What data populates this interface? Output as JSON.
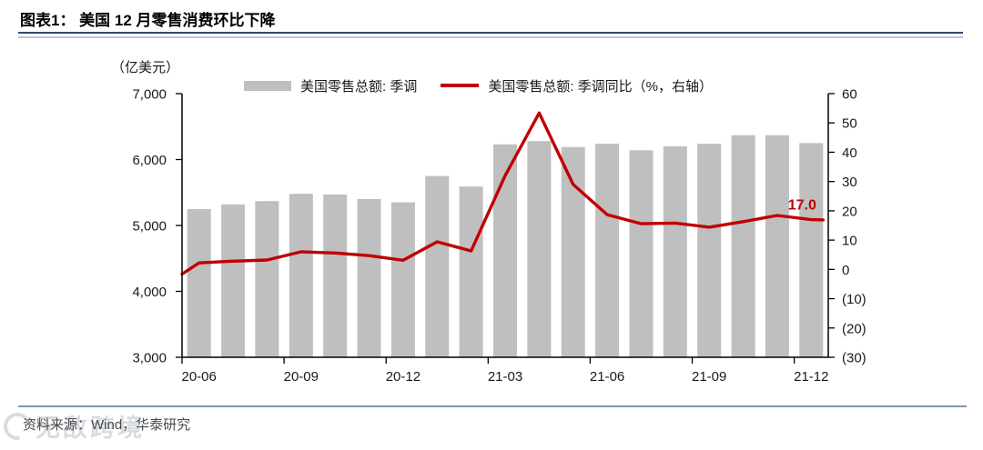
{
  "title": "图表1：  美国 12 月零售消费环比下降",
  "axis_unit_label": "（亿美元）",
  "legend": [
    {
      "label": "美国零售总额: 季调",
      "type": "bar",
      "color": "#BFBFBF"
    },
    {
      "label": "美国零售总额: 季调同比（%，右轴）",
      "type": "line",
      "color": "#C00000"
    }
  ],
  "footer": {
    "source": "资料来源：Wind，华泰研究"
  },
  "watermark": "无敌跨境",
  "chart_data": {
    "type": "bar+line combo",
    "categories": [
      "20-06",
      "20-07",
      "20-08",
      "20-09",
      "20-10",
      "20-11",
      "20-12",
      "21-01",
      "21-02",
      "21-03",
      "21-04",
      "21-05",
      "21-06",
      "21-07",
      "21-08",
      "21-09",
      "21-10",
      "21-11",
      "21-12"
    ],
    "x_tick_labels": [
      "20-06",
      "20-09",
      "20-12",
      "21-03",
      "21-06",
      "21-09",
      "21-12"
    ],
    "series": [
      {
        "name": "美国零售总额: 季调",
        "type": "bar",
        "axis": "left",
        "color": "#BFBFBF",
        "values": [
          5250,
          5320,
          5370,
          5480,
          5470,
          5400,
          5350,
          5750,
          5590,
          6230,
          6280,
          6190,
          6240,
          6140,
          6200,
          6240,
          6370,
          6370,
          6250
        ]
      },
      {
        "name": "美国零售总额: 季调同比（%，右轴）",
        "type": "line",
        "axis": "right",
        "color": "#C00000",
        "values": [
          2.2,
          2.8,
          3.2,
          6.0,
          5.6,
          4.7,
          3.1,
          9.4,
          6.3,
          32.0,
          53.4,
          29.0,
          18.7,
          15.6,
          15.8,
          14.4,
          16.3,
          18.4,
          17.0
        ]
      }
    ],
    "line_edge_values": {
      "left": -1.6,
      "right": 16.9
    },
    "left_axis": {
      "min": 3000,
      "max": 7000,
      "step": 1000,
      "tick_labels": [
        "3,000",
        "4,000",
        "5,000",
        "6,000",
        "7,000"
      ]
    },
    "right_axis": {
      "min": -30,
      "max": 60,
      "step": 10,
      "tick_labels": [
        "(30)",
        "(20)",
        "(10)",
        "0",
        "10",
        "20",
        "30",
        "40",
        "50",
        "60"
      ]
    },
    "annotation": {
      "text": "17.0",
      "color": "#C00000",
      "category": "21-12"
    },
    "grid": false,
    "legend_position": "top"
  }
}
